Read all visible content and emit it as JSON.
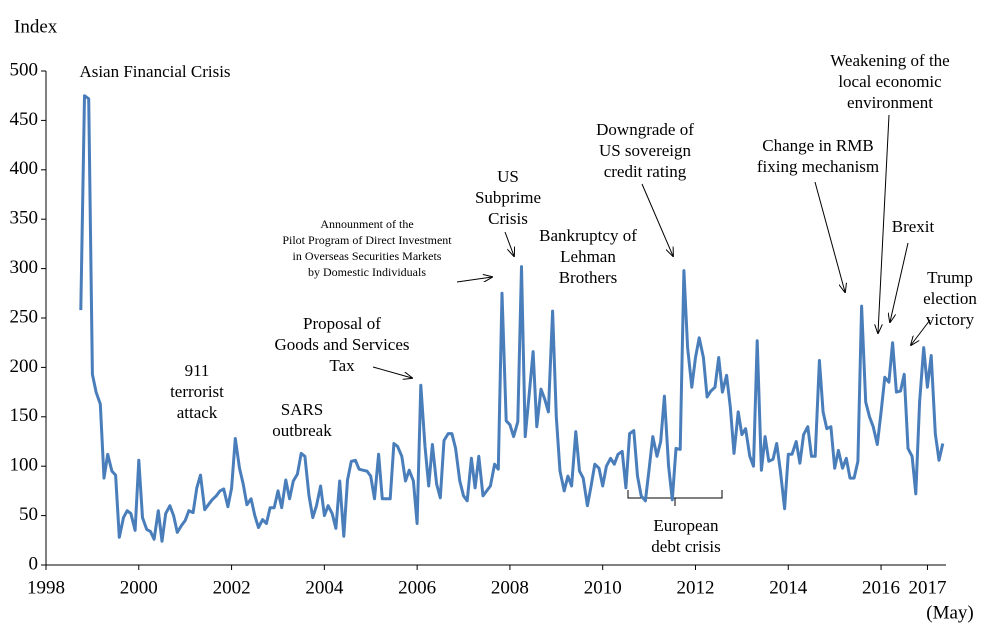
{
  "chart_data": {
    "type": "line",
    "y_label": "Index",
    "x_note": "(May)",
    "color": "#4a7ebb",
    "xlim": [
      1998,
      2017.4
    ],
    "xticks": [
      1998,
      2000,
      2002,
      2004,
      2006,
      2008,
      2010,
      2012,
      2014,
      2016,
      2017
    ],
    "ylim": [
      0,
      500
    ],
    "yticks": [
      0,
      50,
      100,
      150,
      200,
      250,
      300,
      350,
      400,
      450,
      500
    ],
    "x": [
      1998.75,
      1998.83,
      1998.92,
      1999.0,
      1999.08,
      1999.17,
      1999.25,
      1999.33,
      1999.42,
      1999.5,
      1999.58,
      1999.67,
      1999.75,
      1999.83,
      1999.92,
      2000.0,
      2000.08,
      2000.17,
      2000.25,
      2000.33,
      2000.42,
      2000.5,
      2000.58,
      2000.67,
      2000.75,
      2000.83,
      2000.92,
      2001.0,
      2001.08,
      2001.17,
      2001.25,
      2001.33,
      2001.42,
      2001.5,
      2001.58,
      2001.67,
      2001.75,
      2001.83,
      2001.92,
      2002.0,
      2002.08,
      2002.17,
      2002.25,
      2002.33,
      2002.42,
      2002.5,
      2002.58,
      2002.67,
      2002.75,
      2002.83,
      2002.92,
      2003.0,
      2003.08,
      2003.17,
      2003.25,
      2003.33,
      2003.42,
      2003.5,
      2003.58,
      2003.67,
      2003.75,
      2003.83,
      2003.92,
      2004.0,
      2004.08,
      2004.17,
      2004.25,
      2004.33,
      2004.42,
      2004.5,
      2004.58,
      2004.67,
      2004.75,
      2004.83,
      2004.92,
      2005.0,
      2005.08,
      2005.17,
      2005.25,
      2005.33,
      2005.42,
      2005.5,
      2005.58,
      2005.67,
      2005.75,
      2005.83,
      2005.92,
      2006.0,
      2006.08,
      2006.17,
      2006.25,
      2006.33,
      2006.42,
      2006.5,
      2006.58,
      2006.67,
      2006.75,
      2006.83,
      2006.92,
      2007.0,
      2007.08,
      2007.17,
      2007.25,
      2007.33,
      2007.42,
      2007.5,
      2007.58,
      2007.67,
      2007.75,
      2007.83,
      2007.92,
      2008.0,
      2008.08,
      2008.17,
      2008.25,
      2008.33,
      2008.42,
      2008.5,
      2008.58,
      2008.67,
      2008.75,
      2008.83,
      2008.92,
      2009.0,
      2009.08,
      2009.17,
      2009.25,
      2009.33,
      2009.42,
      2009.5,
      2009.58,
      2009.67,
      2009.75,
      2009.83,
      2009.92,
      2010.0,
      2010.08,
      2010.17,
      2010.25,
      2010.33,
      2010.42,
      2010.5,
      2010.58,
      2010.67,
      2010.75,
      2010.83,
      2010.92,
      2011.0,
      2011.08,
      2011.17,
      2011.25,
      2011.33,
      2011.42,
      2011.5,
      2011.58,
      2011.67,
      2011.75,
      2011.83,
      2011.92,
      2012.0,
      2012.08,
      2012.17,
      2012.25,
      2012.33,
      2012.42,
      2012.5,
      2012.58,
      2012.67,
      2012.75,
      2012.83,
      2012.92,
      2013.0,
      2013.08,
      2013.17,
      2013.25,
      2013.33,
      2013.42,
      2013.5,
      2013.58,
      2013.67,
      2013.75,
      2013.83,
      2013.92,
      2014.0,
      2014.08,
      2014.17,
      2014.25,
      2014.33,
      2014.42,
      2014.5,
      2014.58,
      2014.67,
      2014.75,
      2014.83,
      2014.92,
      2015.0,
      2015.08,
      2015.17,
      2015.25,
      2015.33,
      2015.42,
      2015.5,
      2015.58,
      2015.67,
      2015.75,
      2015.83,
      2015.92,
      2016.0,
      2016.08,
      2016.17,
      2016.25,
      2016.33,
      2016.42,
      2016.5,
      2016.58,
      2016.67,
      2016.75,
      2016.83,
      2016.92,
      2017.0,
      2017.08,
      2017.17,
      2017.25,
      2017.33
    ],
    "values": [
      258,
      475,
      472,
      193,
      175,
      163,
      88,
      112,
      95,
      91,
      28,
      48,
      55,
      52,
      35,
      106,
      48,
      36,
      34,
      26,
      55,
      24,
      52,
      60,
      50,
      33,
      40,
      45,
      55,
      53,
      78,
      91,
      56,
      61,
      66,
      70,
      75,
      77,
      59,
      78,
      128,
      98,
      82,
      61,
      67,
      50,
      38,
      46,
      42,
      58,
      58,
      75,
      58,
      86,
      67,
      85,
      92,
      113,
      110,
      70,
      48,
      60,
      80,
      50,
      60,
      52,
      37,
      85,
      29,
      86,
      105,
      106,
      97,
      96,
      95,
      90,
      67,
      112,
      67,
      67,
      67,
      123,
      120,
      110,
      85,
      96,
      85,
      42,
      182,
      120,
      80,
      122,
      82,
      68,
      126,
      133,
      133,
      118,
      85,
      70,
      65,
      108,
      78,
      110,
      70,
      75,
      80,
      102,
      97,
      275,
      146,
      142,
      130,
      145,
      302,
      130,
      175,
      216,
      140,
      178,
      168,
      155,
      257,
      150,
      95,
      75,
      90,
      80,
      135,
      95,
      88,
      60,
      80,
      102,
      98,
      80,
      100,
      108,
      102,
      112,
      115,
      78,
      133,
      136,
      90,
      70,
      65,
      97,
      130,
      110,
      125,
      171,
      100,
      66,
      118,
      117,
      298,
      220,
      180,
      210,
      230,
      210,
      170,
      176,
      180,
      210,
      175,
      192,
      160,
      113,
      155,
      132,
      138,
      110,
      100,
      227,
      96,
      130,
      105,
      107,
      123,
      95,
      57,
      112,
      112,
      125,
      103,
      132,
      140,
      110,
      110,
      207,
      155,
      138,
      140,
      98,
      116,
      98,
      108,
      88,
      88,
      105,
      262,
      165,
      150,
      140,
      122,
      155,
      190,
      185,
      225,
      175,
      176,
      193,
      118,
      110,
      72,
      165,
      220,
      180,
      212,
      133,
      106,
      123
    ],
    "annotations": [
      {
        "lines": [
          "Asian Financial Crisis"
        ]
      },
      {
        "lines": [
          "911",
          "terrorist",
          "attack"
        ]
      },
      {
        "lines": [
          "SARS",
          "outbreak"
        ]
      },
      {
        "lines": [
          "Proposal of",
          "Goods and Services",
          "Tax"
        ]
      },
      {
        "lines": [
          "Announment of the",
          "Pilot Program of Direct Investment",
          "in Overseas Securities Markets",
          "by Domestic Individuals"
        ]
      },
      {
        "lines": [
          "US",
          "Subprime",
          "Crisis"
        ]
      },
      {
        "lines": [
          "Bankruptcy of",
          "Lehman",
          "Brothers"
        ]
      },
      {
        "lines": [
          "Downgrade of",
          "US sovereign",
          "credit rating"
        ]
      },
      {
        "lines": [
          "Change in RMB",
          "fixing mechanism"
        ]
      },
      {
        "lines": [
          "Weakening of the",
          "local economic",
          "environment"
        ]
      },
      {
        "lines": [
          "Brexit"
        ]
      },
      {
        "lines": [
          "Trump",
          "election",
          "victory"
        ]
      },
      {
        "lines": [
          "European",
          "debt crisis"
        ]
      }
    ]
  }
}
